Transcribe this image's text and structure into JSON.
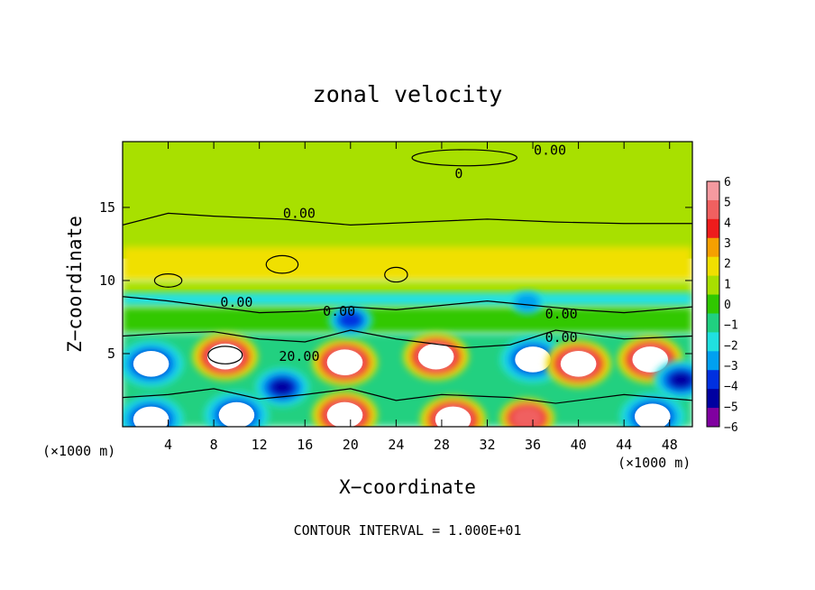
{
  "chart_data": {
    "type": "heatmap",
    "title": "zonal velocity",
    "xlabel": "X−coordinate",
    "ylabel": "Z−coordinate",
    "x_unit_left": "(×1000 m)",
    "x_unit_right": "(×1000 m)",
    "footer": "CONTOUR INTERVAL = 1.000E+01",
    "xlim": [
      0,
      50
    ],
    "ylim": [
      0,
      19.5
    ],
    "x_ticks": [
      4,
      8,
      12,
      16,
      20,
      24,
      28,
      32,
      36,
      40,
      44,
      48
    ],
    "y_ticks": [
      5,
      10,
      15
    ],
    "colorbar": {
      "levels": [
        6,
        5,
        4,
        3,
        2,
        1,
        0,
        -1,
        -2,
        -3,
        -4,
        -5,
        -6
      ],
      "labels": [
        "6",
        "5",
        "4",
        "3",
        "2",
        "1",
        "0",
        "−1",
        "−2",
        "−3",
        "−4",
        "−5",
        "−6"
      ],
      "colors": [
        "#f59aa0",
        "#f06060",
        "#ee1c1c",
        "#f5a000",
        "#f0e000",
        "#a8e000",
        "#30c800",
        "#20d080",
        "#20e0e0",
        "#00a0f0",
        "#0030e0",
        "#0000a0",
        "#8000a0"
      ]
    },
    "contour_labels": [
      {
        "text": "0.00",
        "x": 37.5,
        "y": 18.6
      },
      {
        "text": "0",
        "x": 29.5,
        "y": 17.0
      },
      {
        "text": "0.00",
        "x": 15.5,
        "y": 14.3
      },
      {
        "text": "0.00",
        "x": 10.0,
        "y": 8.2
      },
      {
        "text": "0.00",
        "x": 19.0,
        "y": 7.6
      },
      {
        "text": "0.00",
        "x": 38.5,
        "y": 7.4
      },
      {
        "text": "0.00",
        "x": 38.5,
        "y": 5.8
      },
      {
        "text": "20.00",
        "x": 15.5,
        "y": 4.5
      }
    ],
    "features": [
      {
        "sign": "negative",
        "strength": 6,
        "x": 2.5,
        "z": 4.3
      },
      {
        "sign": "positive",
        "strength": 6,
        "x": 9.0,
        "z": 4.8
      },
      {
        "sign": "negative",
        "strength": 5,
        "x": 14.0,
        "z": 2.7
      },
      {
        "sign": "positive",
        "strength": 6,
        "x": 19.5,
        "z": 4.4
      },
      {
        "sign": "positive",
        "strength": 6,
        "x": 27.5,
        "z": 4.8
      },
      {
        "sign": "negative",
        "strength": 6,
        "x": 36.0,
        "z": 4.6
      },
      {
        "sign": "positive",
        "strength": 6,
        "x": 40.0,
        "z": 4.3
      },
      {
        "sign": "positive",
        "strength": 6,
        "x": 46.3,
        "z": 4.6
      },
      {
        "sign": "negative",
        "strength": 5,
        "x": 49.0,
        "z": 3.2
      },
      {
        "sign": "negative",
        "strength": 6,
        "x": 2.5,
        "z": 0.5
      },
      {
        "sign": "negative",
        "strength": 6,
        "x": 10.0,
        "z": 0.8
      },
      {
        "sign": "positive",
        "strength": 6,
        "x": 19.5,
        "z": 0.8
      },
      {
        "sign": "positive",
        "strength": 6,
        "x": 29.0,
        "z": 0.5
      },
      {
        "sign": "positive",
        "strength": 5,
        "x": 35.5,
        "z": 0.6
      },
      {
        "sign": "negative",
        "strength": 6,
        "x": 46.5,
        "z": 0.7
      },
      {
        "sign": "negative",
        "strength": 4,
        "x": 20.0,
        "z": 7.3
      },
      {
        "sign": "negative",
        "strength": 3,
        "x": 35.5,
        "z": 8.5
      }
    ]
  }
}
